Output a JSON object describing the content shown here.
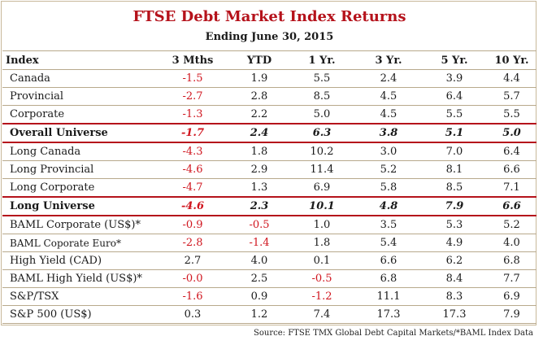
{
  "title": "FTSE Debt Market Index Returns",
  "subtitle": "Ending June 30, 2015",
  "columns": [
    "Index",
    "3 Mths",
    "YTD",
    "1 Yr.",
    "3 Yr.",
    "5 Yr.",
    "10 Yr."
  ],
  "rows": [
    {
      "name": "Canada",
      "values": [
        "-1.5",
        "1.9",
        "5.5",
        "2.4",
        "3.9",
        "4.4"
      ]
    },
    {
      "name": "Provincial",
      "values": [
        "-2.7",
        "2.8",
        "8.5",
        "4.5",
        "6.4",
        "5.7"
      ]
    },
    {
      "name": "Corporate",
      "values": [
        "-1.3",
        "2.2",
        "5.0",
        "4.5",
        "5.5",
        "5.5"
      ]
    },
    {
      "name": "Overall Universe",
      "values": [
        "-1.7",
        "2.4",
        "6.3",
        "3.8",
        "5.1",
        "5.0"
      ]
    },
    {
      "name": "Long Canada",
      "values": [
        "-4.3",
        "1.8",
        "10.2",
        "3.0",
        "7.0",
        "6.4"
      ]
    },
    {
      "name": "Long Provincial",
      "values": [
        "-4.6",
        "2.9",
        "11.4",
        "5.2",
        "8.1",
        "6.6"
      ]
    },
    {
      "name": "Long Corporate",
      "values": [
        "-4.7",
        "1.3",
        "6.9",
        "5.8",
        "8.5",
        "7.1"
      ]
    },
    {
      "name": "Long Universe",
      "values": [
        "-4.6",
        "2.3",
        "10.1",
        "4.8",
        "7.9",
        "6.6"
      ]
    },
    {
      "name": "BAML Corporate (US$)*",
      "values": [
        "-0.9",
        "-0.5",
        "1.0",
        "3.5",
        "5.3",
        "5.2"
      ]
    },
    {
      "name": "BAML Coporate Euro*",
      "values": [
        "-2.8",
        "-1.4",
        "1.8",
        "5.4",
        "4.9",
        "4.0"
      ]
    },
    {
      "name": "High Yield (CAD)",
      "values": [
        "2.7",
        "4.0",
        "0.1",
        "6.6",
        "6.2",
        "6.8"
      ]
    },
    {
      "name": "BAML High Yield (US$)*",
      "values": [
        "-0.0",
        "2.5",
        "-0.5",
        "6.8",
        "8.4",
        "7.7"
      ]
    },
    {
      "name": "S&P/TSX",
      "values": [
        "-1.6",
        "0.9",
        "-1.2",
        "11.1",
        "8.3",
        "6.9"
      ]
    },
    {
      "name": "S&P 500 (US$)",
      "values": [
        "0.3",
        "1.2",
        "7.4",
        "17.3",
        "17.3",
        "7.9"
      ]
    }
  ],
  "source": "Source: FTSE TMX Global Debt Capital Markets/*BAML Index Data",
  "colors": {
    "accent": "#b5121b",
    "negative": "#d0151e",
    "rule": "#b8a98c"
  }
}
